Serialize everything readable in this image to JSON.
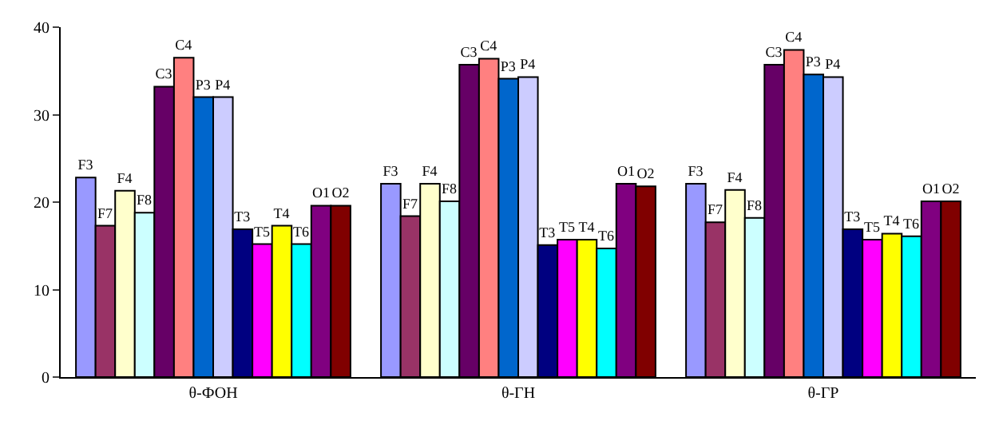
{
  "chart_data": {
    "type": "bar",
    "categories": [
      "θ-ФОН",
      "θ-ГН",
      "θ-ГР"
    ],
    "ylim": [
      0,
      40
    ],
    "yticks": [
      0,
      10,
      20,
      30,
      40
    ],
    "series": [
      {
        "name": "F3",
        "color": "#9999ff",
        "values": [
          22.8,
          22.1,
          22.1
        ]
      },
      {
        "name": "F7",
        "color": "#993366",
        "values": [
          17.3,
          18.4,
          17.7
        ]
      },
      {
        "name": "F4",
        "color": "#ffffcc",
        "values": [
          21.3,
          22.1,
          21.4
        ]
      },
      {
        "name": "F8",
        "color": "#ccffff",
        "values": [
          18.8,
          20.1,
          18.2
        ]
      },
      {
        "name": "C3",
        "color": "#660066",
        "values": [
          33.2,
          35.7,
          35.7
        ]
      },
      {
        "name": "C4",
        "color": "#ff8080",
        "values": [
          36.5,
          36.4,
          37.4
        ]
      },
      {
        "name": "P3",
        "color": "#0066cc",
        "values": [
          32.0,
          34.1,
          34.6
        ]
      },
      {
        "name": "P4",
        "color": "#ccccff",
        "values": [
          32.0,
          34.3,
          34.3
        ]
      },
      {
        "name": "T3",
        "color": "#000080",
        "values": [
          16.9,
          15.1,
          16.9
        ]
      },
      {
        "name": "T5",
        "color": "#ff00ff",
        "values": [
          15.2,
          15.7,
          15.7
        ]
      },
      {
        "name": "T4",
        "color": "#ffff00",
        "values": [
          17.3,
          15.7,
          16.4
        ]
      },
      {
        "name": "T6",
        "color": "#00ffff",
        "values": [
          15.2,
          14.7,
          16.1
        ]
      },
      {
        "name": "O1",
        "color": "#800080",
        "values": [
          19.6,
          22.1,
          20.1
        ]
      },
      {
        "name": "O2",
        "color": "#800000",
        "values": [
          19.6,
          21.8,
          20.1
        ]
      }
    ]
  }
}
